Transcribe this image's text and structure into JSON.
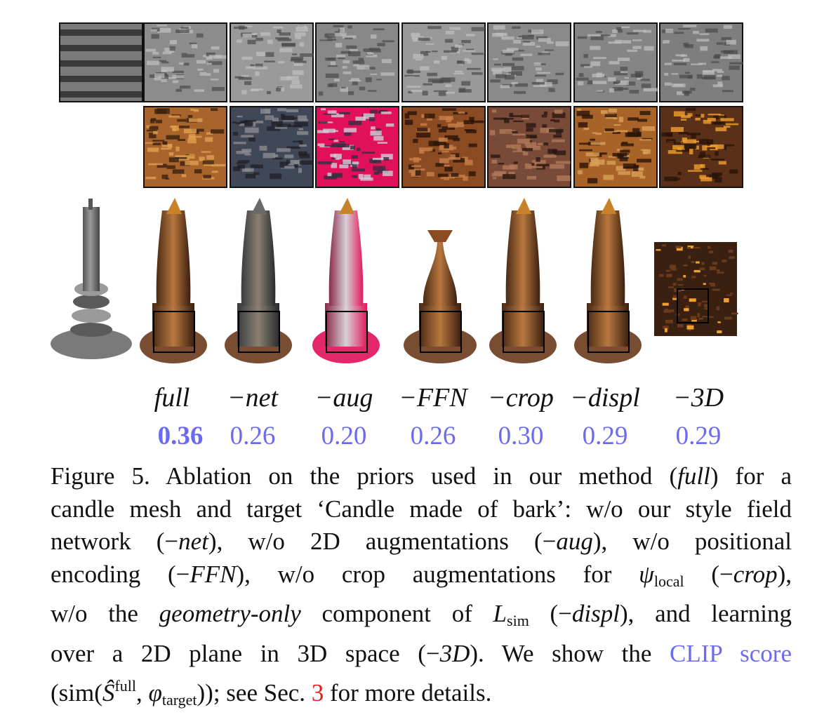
{
  "figure": {
    "columns": [
      {
        "label": "full",
        "score": "0.36"
      },
      {
        "label": "−net",
        "score": "0.26"
      },
      {
        "label": "−aug",
        "score": "0.20"
      },
      {
        "label": "−FFN",
        "score": "0.26"
      },
      {
        "label": "−crop",
        "score": "0.30"
      },
      {
        "label": "−displ",
        "score": "0.29"
      },
      {
        "label": "−3D",
        "score": "0.29"
      }
    ],
    "caption": {
      "lines": [
        [
          {
            "text": "Figure 5.  Ablation on the priors used in our method ("
          },
          {
            "text": "full",
            "style": "italic"
          },
          {
            "text": ") for a"
          }
        ],
        [
          {
            "text": "candle mesh and target ‘Candle made of bark’: w/o our style field"
          }
        ],
        [
          {
            "text": "network (−"
          },
          {
            "text": "net",
            "style": "italic"
          },
          {
            "text": "), w/o 2D augmentations (−"
          },
          {
            "text": "aug",
            "style": "italic"
          },
          {
            "text": "), w/o positional"
          }
        ],
        [
          {
            "text": "encoding (−"
          },
          {
            "text": "FFN",
            "style": "italic"
          },
          {
            "text": "), w/o crop augmentations for "
          },
          {
            "text": "ψ",
            "style": "italic"
          },
          {
            "text": "local",
            "style": "sub"
          },
          {
            "text": " (−"
          },
          {
            "text": "crop",
            "style": "italic"
          },
          {
            "text": "),"
          }
        ],
        [
          {
            "text": "w/o the "
          },
          {
            "text": "geometry-only",
            "style": "italic"
          },
          {
            "text": " component of "
          },
          {
            "text": "L",
            "style": "italic"
          },
          {
            "text": "sim",
            "style": "sub"
          },
          {
            "text": " (−"
          },
          {
            "text": "displ",
            "style": "italic"
          },
          {
            "text": "), and learning"
          }
        ],
        [
          {
            "text": "over a 2D plane in 3D space (−"
          },
          {
            "text": "3D",
            "style": "italic"
          },
          {
            "text": "). We show the "
          },
          {
            "text": "CLIP score",
            "style": "link"
          }
        ],
        [
          {
            "text": "(sim("
          },
          {
            "text": "Ŝ",
            "style": "italic"
          },
          {
            "text": "full",
            "style": "sup"
          },
          {
            "text": ", "
          },
          {
            "text": "φ",
            "style": "italic"
          },
          {
            "text": "target",
            "style": "sub"
          },
          {
            "text": ")); see Sec. "
          },
          {
            "text": "3",
            "style": "ref"
          },
          {
            "text": " for more details."
          }
        ]
      ]
    }
  }
}
